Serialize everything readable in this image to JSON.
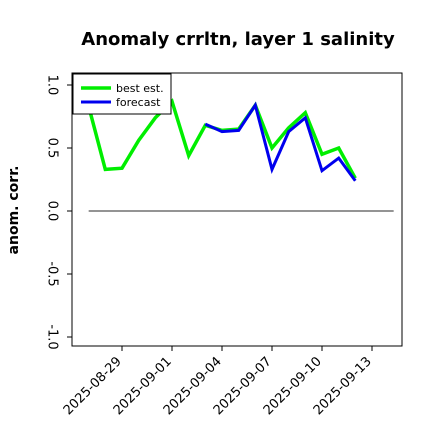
{
  "chart_data": {
    "type": "line",
    "title": "Anomaly crrltn, layer 1 salinity",
    "xlabel": "",
    "ylabel": "anom. corr.",
    "ylim": [
      -1.0,
      1.0
    ],
    "y_ticks": [
      -1.0,
      -0.5,
      0.0,
      0.5,
      1.0
    ],
    "y_tick_labels": [
      "-1.0",
      "-0.5",
      "0.0",
      "0.5",
      "1.0"
    ],
    "x_ticks": [
      {
        "day": 29,
        "label": "2025-08-29",
        "color": "#000000"
      },
      {
        "day": 32,
        "label": "2025-09-01",
        "color": "#000000"
      },
      {
        "day": 35,
        "label": "2025-09-04",
        "color": "#228b22"
      },
      {
        "day": 38,
        "label": "2025-09-07",
        "color": "#000000"
      },
      {
        "day": 41,
        "label": "2025-09-10",
        "color": "#000000"
      },
      {
        "day": 44,
        "label": "2025-09-13",
        "color": "#000000"
      }
    ],
    "x_range": [
      26,
      45.8
    ],
    "reference_line": 0.0,
    "legend": {
      "placement": "top-left"
    },
    "x": [
      27,
      28,
      29,
      30,
      31,
      32,
      33,
      34,
      35,
      36,
      37,
      38,
      39,
      40,
      41,
      42,
      43,
      44
    ],
    "series": [
      {
        "name": "best est.",
        "color": "#00ee00",
        "width": 3.5,
        "values": [
          0.83,
          0.33,
          0.34,
          0.56,
          0.74,
          0.87,
          0.44,
          0.68,
          0.64,
          0.65,
          0.84,
          0.5,
          0.66,
          0.78,
          0.45,
          0.5,
          0.26,
          null
        ]
      },
      {
        "name": "forecast",
        "color": "#0000ee",
        "width": 3,
        "values": [
          null,
          null,
          null,
          null,
          null,
          null,
          null,
          0.69,
          0.63,
          0.64,
          0.84,
          0.33,
          0.63,
          0.74,
          0.32,
          0.42,
          0.24,
          null
        ]
      }
    ]
  }
}
